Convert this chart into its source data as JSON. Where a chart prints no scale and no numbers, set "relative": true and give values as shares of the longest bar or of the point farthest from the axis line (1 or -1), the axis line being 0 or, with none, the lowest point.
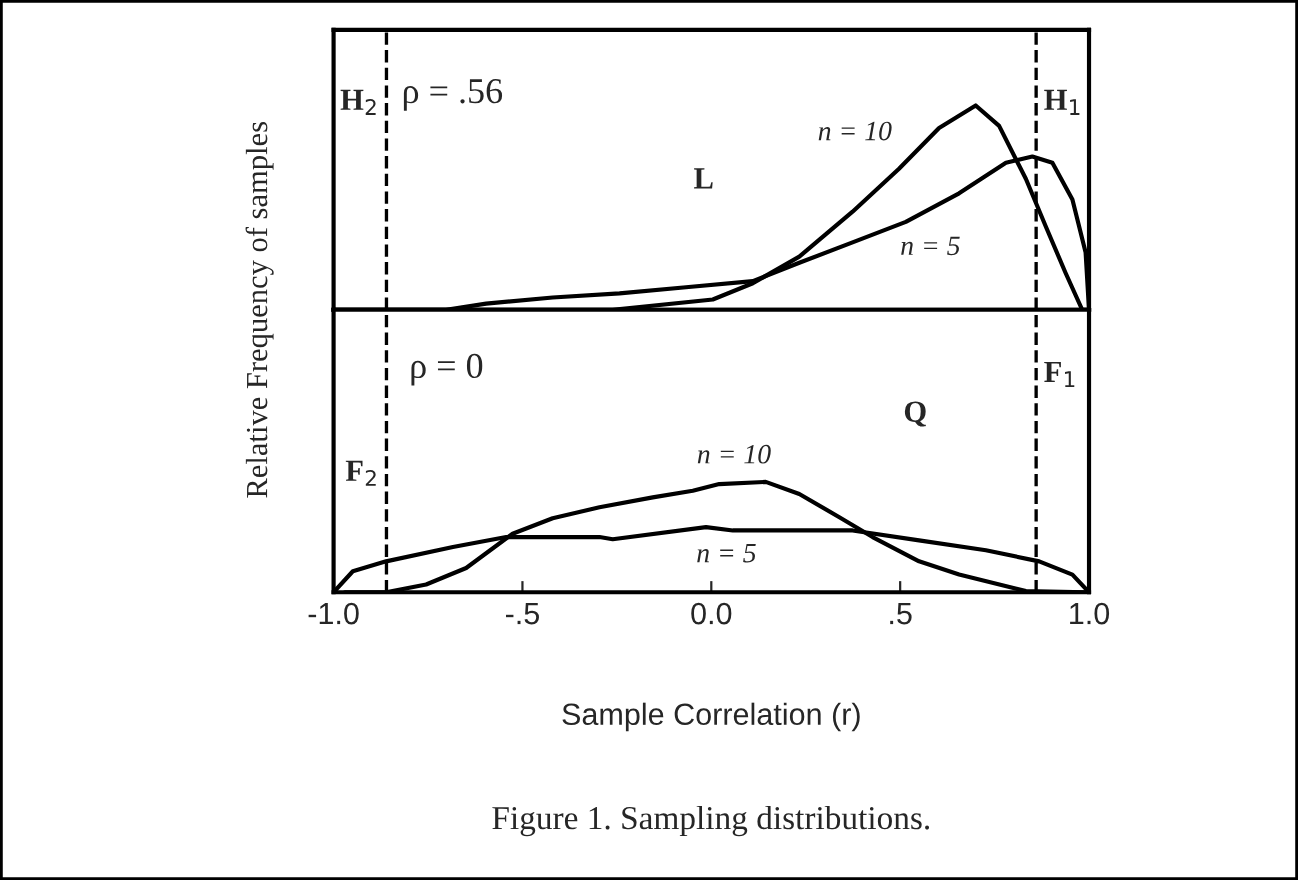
{
  "chart_data": [
    {
      "type": "line",
      "relative": true,
      "ylabel": "Relative Frequency of samples",
      "xlim": [
        -1.0,
        1.0
      ],
      "tick_labels": false,
      "annotations": [
        "ρ = .56",
        "L"
      ],
      "ref_lines": [
        {
          "axis": "x",
          "value": -0.86,
          "label": "H$_{2}$",
          "line_style": "dashed"
        },
        {
          "axis": "x",
          "value": 0.86,
          "label": "H$_{1}$",
          "line_style": "dashed"
        }
      ],
      "series": [
        {
          "name": "n = 10",
          "color": "#000000",
          "x": [
            -1.0,
            -0.261,
            0.004,
            0.11,
            0.233,
            0.374,
            0.497,
            0.603,
            0.7,
            0.762,
            0.833,
            0.885,
            0.938,
            0.982,
            1.0
          ],
          "values": [
            0,
            0,
            0.05,
            0.13,
            0.26,
            0.48,
            0.69,
            0.89,
            1.0,
            0.9,
            0.64,
            0.41,
            0.18,
            0,
            0
          ]
        },
        {
          "name": "n = 5",
          "color": "#000000",
          "x": [
            -1.0,
            -0.702,
            -0.596,
            -0.42,
            -0.243,
            -0.067,
            0.11,
            0.233,
            0.374,
            0.515,
            0.656,
            0.78,
            0.85,
            0.903,
            0.956,
            0.991,
            1.0
          ],
          "values": [
            0,
            0,
            0.03,
            0.06,
            0.08,
            0.11,
            0.14,
            0.23,
            0.33,
            0.43,
            0.57,
            0.72,
            0.75,
            0.72,
            0.54,
            0.28,
            0
          ]
        }
      ]
    },
    {
      "type": "line",
      "relative": true,
      "xlabel": "Sample Correlation (r)",
      "xlim": [
        -1.0,
        1.0
      ],
      "tick_labels": "x",
      "xticks": [
        {
          "value": -1.0,
          "label": "-1.0"
        },
        {
          "value": -0.5,
          "label": "-.5"
        },
        {
          "value": 0.0,
          "label": "0.0"
        },
        {
          "value": 0.5,
          "label": ".5"
        },
        {
          "value": 1.0,
          "label": "1.0"
        }
      ],
      "annotations": [
        "ρ = 0",
        "Q",
        "Figure 1. Sampling distributions."
      ],
      "ref_lines": [
        {
          "axis": "x",
          "value": -0.86,
          "label": "F$_{2}$",
          "line_style": "dashed"
        },
        {
          "axis": "x",
          "value": 0.86,
          "label": "F$_{1}$",
          "line_style": "dashed"
        }
      ],
      "series": [
        {
          "name": "n = 10",
          "color": "#000000",
          "x": [
            -0.97,
            -0.861,
            -0.755,
            -0.649,
            -0.526,
            -0.42,
            -0.296,
            -0.155,
            -0.049,
            0.021,
            0.144,
            0.233,
            0.339,
            0.427,
            0.55,
            0.656,
            0.833,
            0.99
          ],
          "values": [
            0,
            0,
            0.07,
            0.22,
            0.53,
            0.67,
            0.77,
            0.86,
            0.92,
            0.98,
            1.0,
            0.89,
            0.68,
            0.5,
            0.28,
            0.16,
            0.01,
            0
          ]
        },
        {
          "name": "n = 5",
          "color": "#000000",
          "x": [
            -1.0,
            -0.949,
            -0.861,
            -0.684,
            -0.543,
            -0.296,
            -0.261,
            -0.014,
            0.057,
            0.374,
            0.55,
            0.727,
            0.868,
            0.956,
            1.0
          ],
          "values": [
            0,
            0.19,
            0.28,
            0.41,
            0.5,
            0.5,
            0.48,
            0.59,
            0.56,
            0.56,
            0.47,
            0.38,
            0.28,
            0.16,
            0
          ]
        }
      ]
    }
  ]
}
